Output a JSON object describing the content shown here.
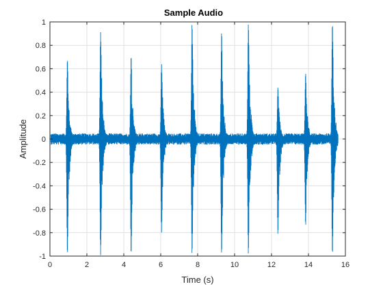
{
  "colors": {
    "series": "#0072bd",
    "grid": "#dfdfdf",
    "axis": "#262626",
    "background": "#ffffff"
  },
  "chart_data": {
    "type": "line",
    "title": "Sample Audio",
    "xlabel": "Time (s)",
    "ylabel": "Amplitude",
    "xlim": [
      0,
      16
    ],
    "ylim": [
      -1,
      1
    ],
    "xticks": [
      0,
      2,
      4,
      6,
      8,
      10,
      12,
      14,
      16
    ],
    "yticks": [
      -1,
      -0.8,
      -0.6,
      -0.4,
      -0.2,
      0,
      0.2,
      0.4,
      0.6,
      0.8,
      1
    ],
    "xtick_labels": [
      "0",
      "2",
      "4",
      "6",
      "8",
      "10",
      "12",
      "14",
      "16"
    ],
    "ytick_labels": [
      "-1",
      "-0.8",
      "-0.6",
      "-0.4",
      "-0.2",
      "0",
      "0.2",
      "0.4",
      "0.6",
      "0.8",
      "1"
    ],
    "grid": true,
    "legend": "none",
    "series": [
      {
        "signal_start": 0.05,
        "signal_end": 15.6,
        "noise_amplitude": 0.04,
        "bursts": [
          {
            "t": 0.95,
            "peak_max": 0.69,
            "peak_min": -1.0
          },
          {
            "t": 2.75,
            "peak_max": 0.92,
            "peak_min": -1.0
          },
          {
            "t": 4.4,
            "peak_max": 0.72,
            "peak_min": -1.0
          },
          {
            "t": 6.05,
            "peak_max": 0.64,
            "peak_min": -0.8
          },
          {
            "t": 7.7,
            "peak_max": 1.0,
            "peak_min": -1.0
          },
          {
            "t": 9.3,
            "peak_max": 0.93,
            "peak_min": -1.0
          },
          {
            "t": 10.75,
            "peak_max": 1.0,
            "peak_min": -1.0
          },
          {
            "t": 12.35,
            "peak_max": 0.45,
            "peak_min": -0.83
          },
          {
            "t": 13.85,
            "peak_max": 0.57,
            "peak_min": -0.75
          },
          {
            "t": 15.3,
            "peak_max": 1.0,
            "peak_min": -1.0
          }
        ]
      }
    ]
  }
}
